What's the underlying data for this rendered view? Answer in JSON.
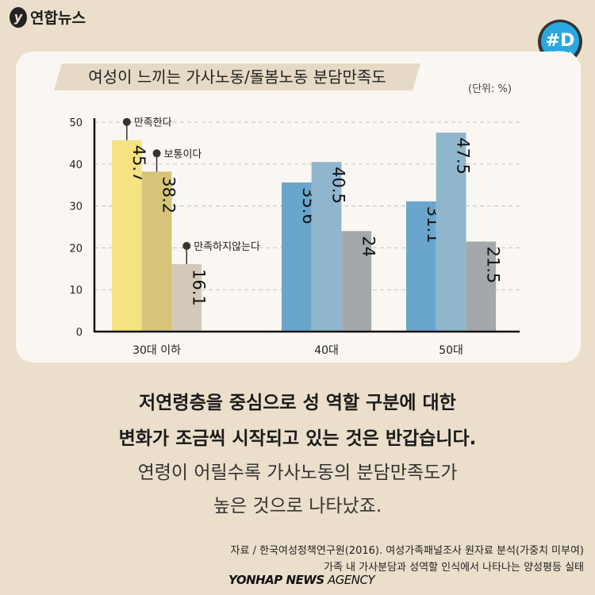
{
  "header": {
    "logo_text": "연합뉴스",
    "badge_top": "#D",
    "badge_bottom": "디지털뉴스",
    "badge_color": "#29a8e0"
  },
  "chart_data": {
    "type": "bar",
    "title": "여성이 느끼는 가사노동/돌봄노동 분담만족도",
    "unit_label": "(단위: %)",
    "categories": [
      "30대 이하",
      "40대",
      "50대"
    ],
    "series": [
      {
        "name": "만족한다",
        "values": [
          45.7,
          35.6,
          31.1
        ],
        "colors": [
          "#f4e283",
          "#6aa6cc",
          "#6aa6cc"
        ]
      },
      {
        "name": "보통이다",
        "values": [
          38.2,
          40.5,
          47.5
        ],
        "colors": [
          "#d5c47a",
          "#8fb6cd",
          "#8fb6cd"
        ]
      },
      {
        "name": "만족하지않는다",
        "values": [
          16.1,
          24,
          21.5
        ],
        "colors": [
          "#d4c9b8",
          "#a4a8aa",
          "#a4a8aa"
        ]
      }
    ],
    "value_labels": [
      [
        "45.7",
        "35.6",
        "31.1"
      ],
      [
        "38.2",
        "40.5",
        "47.5"
      ],
      [
        "16.1",
        "24",
        "21.5"
      ]
    ],
    "ylim": [
      0,
      50
    ],
    "yticks": [
      "0",
      "10",
      "20",
      "30",
      "40",
      "50"
    ],
    "grid": true,
    "legend": "inline annotations on first group"
  },
  "body": {
    "line1": "저연령층을 중심으로 성 역할 구분에 대한",
    "line2": "변화가 조금씩 시작되고 있는 것은 반갑습니다.",
    "line3": "연령이 어릴수록 가사노동의 분담만족도가",
    "line4": "높은 것으로 나타났죠."
  },
  "footer": {
    "source1": "자료 / 한국여성정책연구원(2016). 여성가족패널조사 원자료 분석(가중치 미부여)",
    "source2": "가족 내 가사분담과 성역할 인식에서 나타나는 양성평등 실태",
    "agency_bold": "YONHAP NEWS",
    "agency_light": " AGENCY"
  }
}
